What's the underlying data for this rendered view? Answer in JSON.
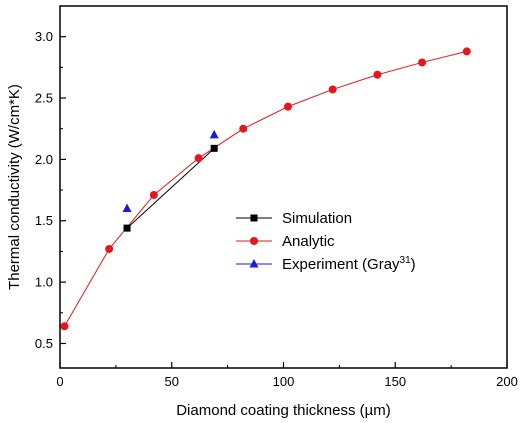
{
  "chart_data": {
    "type": "line",
    "xlabel": "Diamond coating thickness (µm)",
    "ylabel": "Thermal conductivity (W/cm*K)",
    "xlim": [
      0,
      200
    ],
    "ylim": [
      0.3,
      3.25
    ],
    "x_ticks": [
      0,
      50,
      100,
      150,
      200
    ],
    "y_ticks": [
      0.5,
      1.0,
      1.5,
      2.0,
      2.5,
      3.0
    ],
    "x_tick_labels": [
      "0",
      "50",
      "100",
      "150",
      "200"
    ],
    "y_tick_labels": [
      "0.5",
      "1.0",
      "1.5",
      "2.0",
      "2.5",
      "3.0"
    ],
    "grid": false,
    "legend_position": "center-right",
    "series": [
      {
        "name": "Simulation",
        "color": "#000000",
        "marker": "square",
        "line": true,
        "x": [
          30,
          69
        ],
        "y": [
          1.44,
          2.09
        ]
      },
      {
        "name": "Analytic",
        "color": "#e8161b",
        "marker": "circle",
        "line": true,
        "x": [
          2,
          22,
          42,
          62,
          82,
          102,
          122,
          142,
          162,
          182
        ],
        "y": [
          0.64,
          1.27,
          1.71,
          2.01,
          2.25,
          2.43,
          2.57,
          2.69,
          2.79,
          2.88
        ]
      },
      {
        "name": "Experiment (Gray",
        "name_superscript": "31",
        "name_suffix": ")",
        "color": "#1a1adb",
        "marker": "triangle",
        "line": false,
        "x": [
          30,
          69
        ],
        "y": [
          1.6,
          2.2
        ]
      }
    ]
  }
}
